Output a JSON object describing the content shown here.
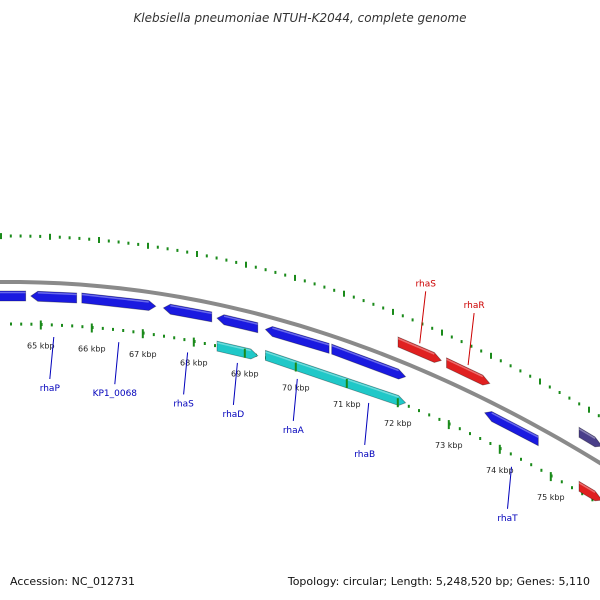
{
  "title": "Klebsiella pneumoniae NTUH-K2044, complete genome",
  "footer": {
    "accession": "Accession: NC_012731",
    "summary": "Topology: circular; Length: 5,248,520 bp; Genes: 5,110"
  },
  "colors": {
    "background": "#ffffff",
    "backbone": "#8a8a8a",
    "tick_marks": "#1a8a1a",
    "gene_forward": "#e02020",
    "gene_reverse": "#1a1ae0",
    "gene_rna_cyan": "#20c8c8",
    "gene_other": "#4a3f8a",
    "label_red": "#cc0000",
    "label_blue": "#0000bb"
  },
  "scale": {
    "unit": "kbp",
    "ticks": [
      {
        "value": 65,
        "label": "65 kbp"
      },
      {
        "value": 66,
        "label": "66 kbp"
      },
      {
        "value": 67,
        "label": "67 kbp"
      },
      {
        "value": 68,
        "label": "68 kbp"
      },
      {
        "value": 69,
        "label": "69 kbp"
      },
      {
        "value": 70,
        "label": "70 kbp"
      },
      {
        "value": 71,
        "label": "71 kbp"
      },
      {
        "value": 72,
        "label": "72 kbp"
      },
      {
        "value": 73,
        "label": "73 kbp"
      },
      {
        "value": 74,
        "label": "74 kbp"
      },
      {
        "value": 75,
        "label": "75 kbp"
      }
    ]
  },
  "genes": [
    {
      "id": "g0",
      "label": "",
      "strand": "reverse",
      "color_key": "gene_reverse",
      "start": 64.2,
      "end": 64.9
    },
    {
      "id": "g1",
      "label": "rhaP",
      "strand": "reverse",
      "color_key": "gene_reverse",
      "start": 65.0,
      "end": 65.9
    },
    {
      "id": "g2",
      "label": "KP1_0068",
      "strand": "forward",
      "color_key": "gene_reverse",
      "start": 66.0,
      "end": 67.45
    },
    {
      "id": "g3",
      "label": "rhaS",
      "strand": "reverse",
      "color_key": "gene_reverse",
      "start": 67.6,
      "end": 68.55
    },
    {
      "id": "g4",
      "label": "rhaD",
      "strand": "reverse",
      "color_key": "gene_reverse",
      "start": 68.65,
      "end": 69.45
    },
    {
      "id": "g5",
      "label": "",
      "strand": "forward",
      "color_key": "gene_rna_cyan",
      "start": 68.65,
      "end": 69.45
    },
    {
      "id": "g6",
      "label": "rhaA",
      "strand": "reverse",
      "color_key": "gene_reverse",
      "start": 69.6,
      "end": 70.85
    },
    {
      "id": "g7",
      "label": "rhaB",
      "strand": "forward",
      "color_key": "gene_reverse",
      "start": 70.9,
      "end": 72.35
    },
    {
      "id": "g8",
      "label": "",
      "strand": "forward",
      "color_key": "gene_rna_cyan",
      "start": 69.6,
      "end": 72.35
    },
    {
      "id": "g9",
      "label": "rhaS",
      "strand": "forward",
      "color_key": "gene_forward",
      "start": 72.2,
      "end": 73.05
    },
    {
      "id": "g10",
      "label": "rhaR",
      "strand": "forward",
      "color_key": "gene_forward",
      "start": 73.15,
      "end": 74.0
    },
    {
      "id": "g11",
      "label": "rhaT",
      "strand": "reverse",
      "color_key": "gene_reverse",
      "start": 73.9,
      "end": 74.95
    },
    {
      "id": "g12",
      "label": "",
      "strand": "forward",
      "color_key": "gene_forward",
      "start": 75.75,
      "end": 76.2
    },
    {
      "id": "g13",
      "label": "",
      "strand": "forward",
      "color_key": "gene_other",
      "start": 75.75,
      "end": 76.2
    }
  ]
}
